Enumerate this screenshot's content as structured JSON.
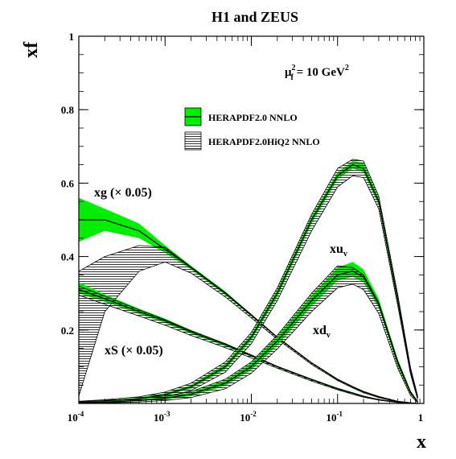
{
  "chart_data": {
    "type": "line",
    "title": "H1 and ZEUS",
    "xlabel": "x",
    "ylabel": "xf",
    "scale_annotation": {
      "prefix": "μ",
      "sup": "2",
      "sub": "f",
      "eq": " = 10 GeV",
      "unit_sup": "2"
    },
    "x_scale": "log",
    "xlim": [
      0.0001,
      1
    ],
    "ylim": [
      0,
      1
    ],
    "x_ticks": [
      {
        "value": 0.0001,
        "base": "10",
        "exp": "-4"
      },
      {
        "value": 0.001,
        "base": "10",
        "exp": "-3"
      },
      {
        "value": 0.01,
        "base": "10",
        "exp": "-2"
      },
      {
        "value": 0.1,
        "base": "10",
        "exp": "-1"
      },
      {
        "value": 1,
        "base": "1",
        "exp": ""
      }
    ],
    "y_ticks": [
      {
        "value": 0.2,
        "label": "0.2"
      },
      {
        "value": 0.4,
        "label": "0.4"
      },
      {
        "value": 0.6,
        "label": "0.6"
      },
      {
        "value": 0.8,
        "label": "0.8"
      },
      {
        "value": 1.0,
        "label": "1"
      }
    ],
    "grid": false,
    "legend_position": "top-center",
    "legend": [
      {
        "label": "HERAPDF2.0 NNLO",
        "style": "green-band"
      },
      {
        "label": "HERAPDF2.0HiQ2 NNLO",
        "style": "hatched-band"
      }
    ],
    "annotations": {
      "xg": "xg (× 0.05)",
      "xS": "xS (× 0.05)",
      "xuv_base": "xu",
      "xuv_sub": "v",
      "xdv_base": "xd",
      "xdv_sub": "v"
    },
    "colors": {
      "band_fill": "#00ee00",
      "hatch": "#000000",
      "axis": "#000000"
    },
    "x": [
      0.0001,
      0.0002,
      0.0005,
      0.001,
      0.002,
      0.005,
      0.01,
      0.02,
      0.05,
      0.1,
      0.15,
      0.2,
      0.3,
      0.5,
      0.7,
      0.85
    ],
    "series": [
      {
        "name": "xg",
        "label_ref": "xg",
        "nnlo": {
          "central": [
            0.5,
            0.5,
            0.47,
            0.42,
            0.37,
            0.3,
            0.24,
            0.18,
            0.11,
            0.065,
            0.045,
            0.032,
            0.018,
            0.005,
            0.0015,
            0.0
          ],
          "lower": [
            0.44,
            0.47,
            0.45,
            0.41,
            0.365,
            0.295,
            0.237,
            0.178,
            0.108,
            0.063,
            0.043,
            0.03,
            0.017,
            0.004,
            0.001,
            0.0
          ],
          "upper": [
            0.56,
            0.53,
            0.49,
            0.43,
            0.375,
            0.305,
            0.243,
            0.182,
            0.112,
            0.067,
            0.047,
            0.034,
            0.019,
            0.006,
            0.002,
            0.0
          ]
        },
        "hiq2": {
          "lower": [
            0.02,
            0.25,
            0.36,
            0.385,
            0.355,
            0.29,
            0.233,
            0.175,
            0.106,
            0.062,
            0.042,
            0.029,
            0.016,
            0.004,
            0.001,
            0.0
          ],
          "upper": [
            0.36,
            0.4,
            0.43,
            0.425,
            0.372,
            0.302,
            0.242,
            0.181,
            0.111,
            0.066,
            0.046,
            0.033,
            0.019,
            0.006,
            0.002,
            0.0
          ]
        }
      },
      {
        "name": "xS",
        "label_ref": "xS",
        "nnlo": {
          "central": [
            0.31,
            0.285,
            0.25,
            0.225,
            0.195,
            0.16,
            0.13,
            0.1,
            0.065,
            0.04,
            0.028,
            0.019,
            0.01,
            0.003,
            0.0008,
            0.0
          ],
          "lower": [
            0.3,
            0.277,
            0.244,
            0.219,
            0.19,
            0.156,
            0.127,
            0.098,
            0.063,
            0.038,
            0.026,
            0.018,
            0.009,
            0.0025,
            0.0006,
            0.0
          ],
          "upper": [
            0.33,
            0.297,
            0.258,
            0.231,
            0.2,
            0.164,
            0.133,
            0.102,
            0.067,
            0.042,
            0.03,
            0.021,
            0.011,
            0.0035,
            0.001,
            0.0
          ]
        },
        "hiq2": {
          "lower": [
            0.295,
            0.27,
            0.238,
            0.213,
            0.185,
            0.152,
            0.124,
            0.096,
            0.061,
            0.037,
            0.025,
            0.017,
            0.009,
            0.0025,
            0.0006,
            0.0
          ],
          "upper": [
            0.32,
            0.292,
            0.255,
            0.228,
            0.198,
            0.163,
            0.132,
            0.101,
            0.066,
            0.041,
            0.029,
            0.02,
            0.011,
            0.0035,
            0.001,
            0.0
          ]
        }
      },
      {
        "name": "xuv",
        "label_ref": "xuv",
        "nnlo": {
          "central": [
            0.003,
            0.006,
            0.013,
            0.024,
            0.045,
            0.1,
            0.18,
            0.3,
            0.5,
            0.62,
            0.65,
            0.64,
            0.55,
            0.28,
            0.09,
            0.015
          ],
          "lower": [
            0.002,
            0.005,
            0.011,
            0.021,
            0.04,
            0.093,
            0.172,
            0.29,
            0.49,
            0.61,
            0.64,
            0.63,
            0.54,
            0.27,
            0.085,
            0.012
          ],
          "upper": [
            0.005,
            0.008,
            0.016,
            0.028,
            0.05,
            0.108,
            0.188,
            0.31,
            0.51,
            0.63,
            0.66,
            0.655,
            0.56,
            0.29,
            0.095,
            0.018
          ]
        },
        "hiq2": {
          "lower": [
            0.0,
            0.003,
            0.008,
            0.017,
            0.035,
            0.085,
            0.163,
            0.28,
            0.47,
            0.59,
            0.62,
            0.615,
            0.53,
            0.265,
            0.08,
            0.01
          ],
          "upper": [
            0.006,
            0.01,
            0.018,
            0.031,
            0.055,
            0.113,
            0.193,
            0.315,
            0.515,
            0.64,
            0.665,
            0.66,
            0.565,
            0.295,
            0.098,
            0.02
          ]
        }
      },
      {
        "name": "xdv",
        "label_ref": "xdv",
        "nnlo": {
          "central": [
            0.002,
            0.004,
            0.008,
            0.014,
            0.025,
            0.055,
            0.1,
            0.17,
            0.28,
            0.35,
            0.36,
            0.345,
            0.27,
            0.11,
            0.03,
            0.004
          ],
          "lower": [
            0.001,
            0.003,
            0.006,
            0.011,
            0.02,
            0.048,
            0.091,
            0.158,
            0.265,
            0.335,
            0.345,
            0.33,
            0.26,
            0.1,
            0.025,
            0.003
          ],
          "upper": [
            0.004,
            0.006,
            0.011,
            0.018,
            0.03,
            0.063,
            0.11,
            0.183,
            0.295,
            0.37,
            0.385,
            0.365,
            0.285,
            0.12,
            0.035,
            0.006
          ]
        },
        "hiq2": {
          "lower": [
            0.0,
            0.001,
            0.004,
            0.008,
            0.016,
            0.04,
            0.082,
            0.148,
            0.25,
            0.315,
            0.325,
            0.31,
            0.245,
            0.095,
            0.022,
            0.002
          ],
          "upper": [
            0.005,
            0.008,
            0.013,
            0.02,
            0.032,
            0.066,
            0.113,
            0.186,
            0.3,
            0.375,
            0.37,
            0.35,
            0.275,
            0.115,
            0.033,
            0.006
          ]
        }
      }
    ]
  }
}
